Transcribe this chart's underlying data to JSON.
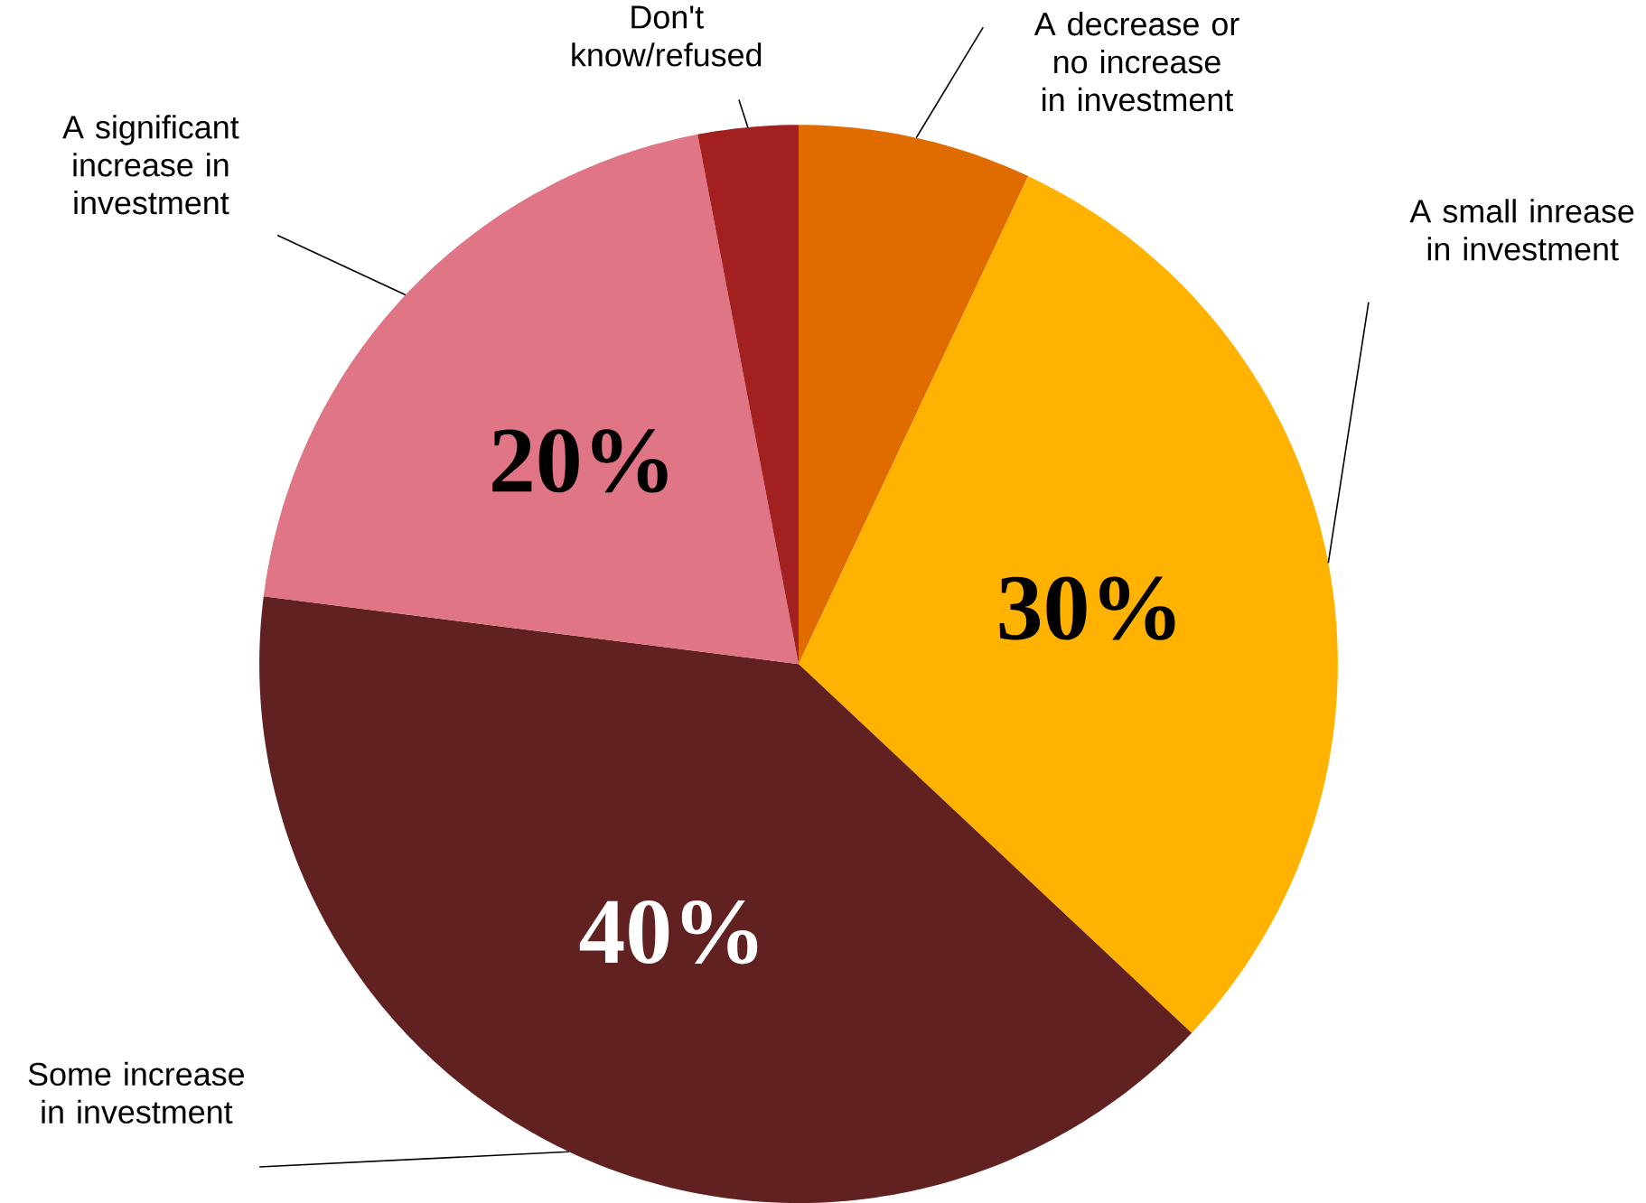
{
  "chart_data": {
    "type": "pie",
    "categories": [
      "A decrease or no increase in investment",
      "A small inrease in investment",
      "Some increase in investment",
      "A significant increase in investment",
      "Don't know/refused"
    ],
    "values": [
      7,
      30,
      40,
      20,
      3
    ],
    "colors": [
      "#e06c00",
      "#ffb300",
      "#612121",
      "#e07585",
      "#a32020"
    ],
    "value_labels": [
      null,
      "30%",
      "40%",
      "20%",
      null
    ]
  }
}
